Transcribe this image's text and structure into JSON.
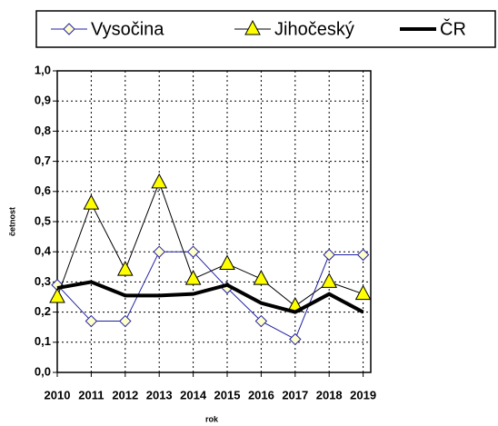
{
  "chart_data": {
    "type": "line",
    "x_label": "rok",
    "y_label": "četnost",
    "categories": [
      "2010",
      "2011",
      "2012",
      "2013",
      "2014",
      "2015",
      "2016",
      "2017",
      "2018",
      "2019"
    ],
    "series": [
      {
        "name": "Vysočina",
        "color": "#1f1f9f",
        "marker": "diamond",
        "marker_fill": "#ffffcc",
        "values": [
          0.29,
          0.17,
          0.17,
          0.4,
          0.4,
          0.28,
          0.17,
          0.11,
          0.39,
          0.39
        ]
      },
      {
        "name": "Jihočeský",
        "color": "#000000",
        "marker": "triangle",
        "marker_fill": "#ffff00",
        "values": [
          0.25,
          0.56,
          0.34,
          0.63,
          0.31,
          0.36,
          0.31,
          0.22,
          0.3,
          0.26
        ]
      },
      {
        "name": "ČR",
        "color": "#000000",
        "marker": "none",
        "line_width": 4,
        "values": [
          0.28,
          0.3,
          0.255,
          0.255,
          0.26,
          0.29,
          0.23,
          0.2,
          0.26,
          0.2
        ]
      }
    ],
    "ylim": [
      0,
      1
    ],
    "yticks": [
      {
        "value": 0,
        "label": "0,0"
      },
      {
        "value": 0.1,
        "label": "0,1"
      },
      {
        "value": 0.2,
        "label": "0,2"
      },
      {
        "value": 0.3,
        "label": "0,3"
      },
      {
        "value": 0.4,
        "label": "0,4"
      },
      {
        "value": 0.5,
        "label": "0,5"
      },
      {
        "value": 0.6,
        "label": "0,6"
      },
      {
        "value": 0.7,
        "label": "0,7"
      },
      {
        "value": 0.8,
        "label": "0,8"
      },
      {
        "value": 0.9,
        "label": "0,9"
      },
      {
        "value": 1,
        "label": "1,0"
      }
    ],
    "grid": true,
    "legend": "top"
  }
}
